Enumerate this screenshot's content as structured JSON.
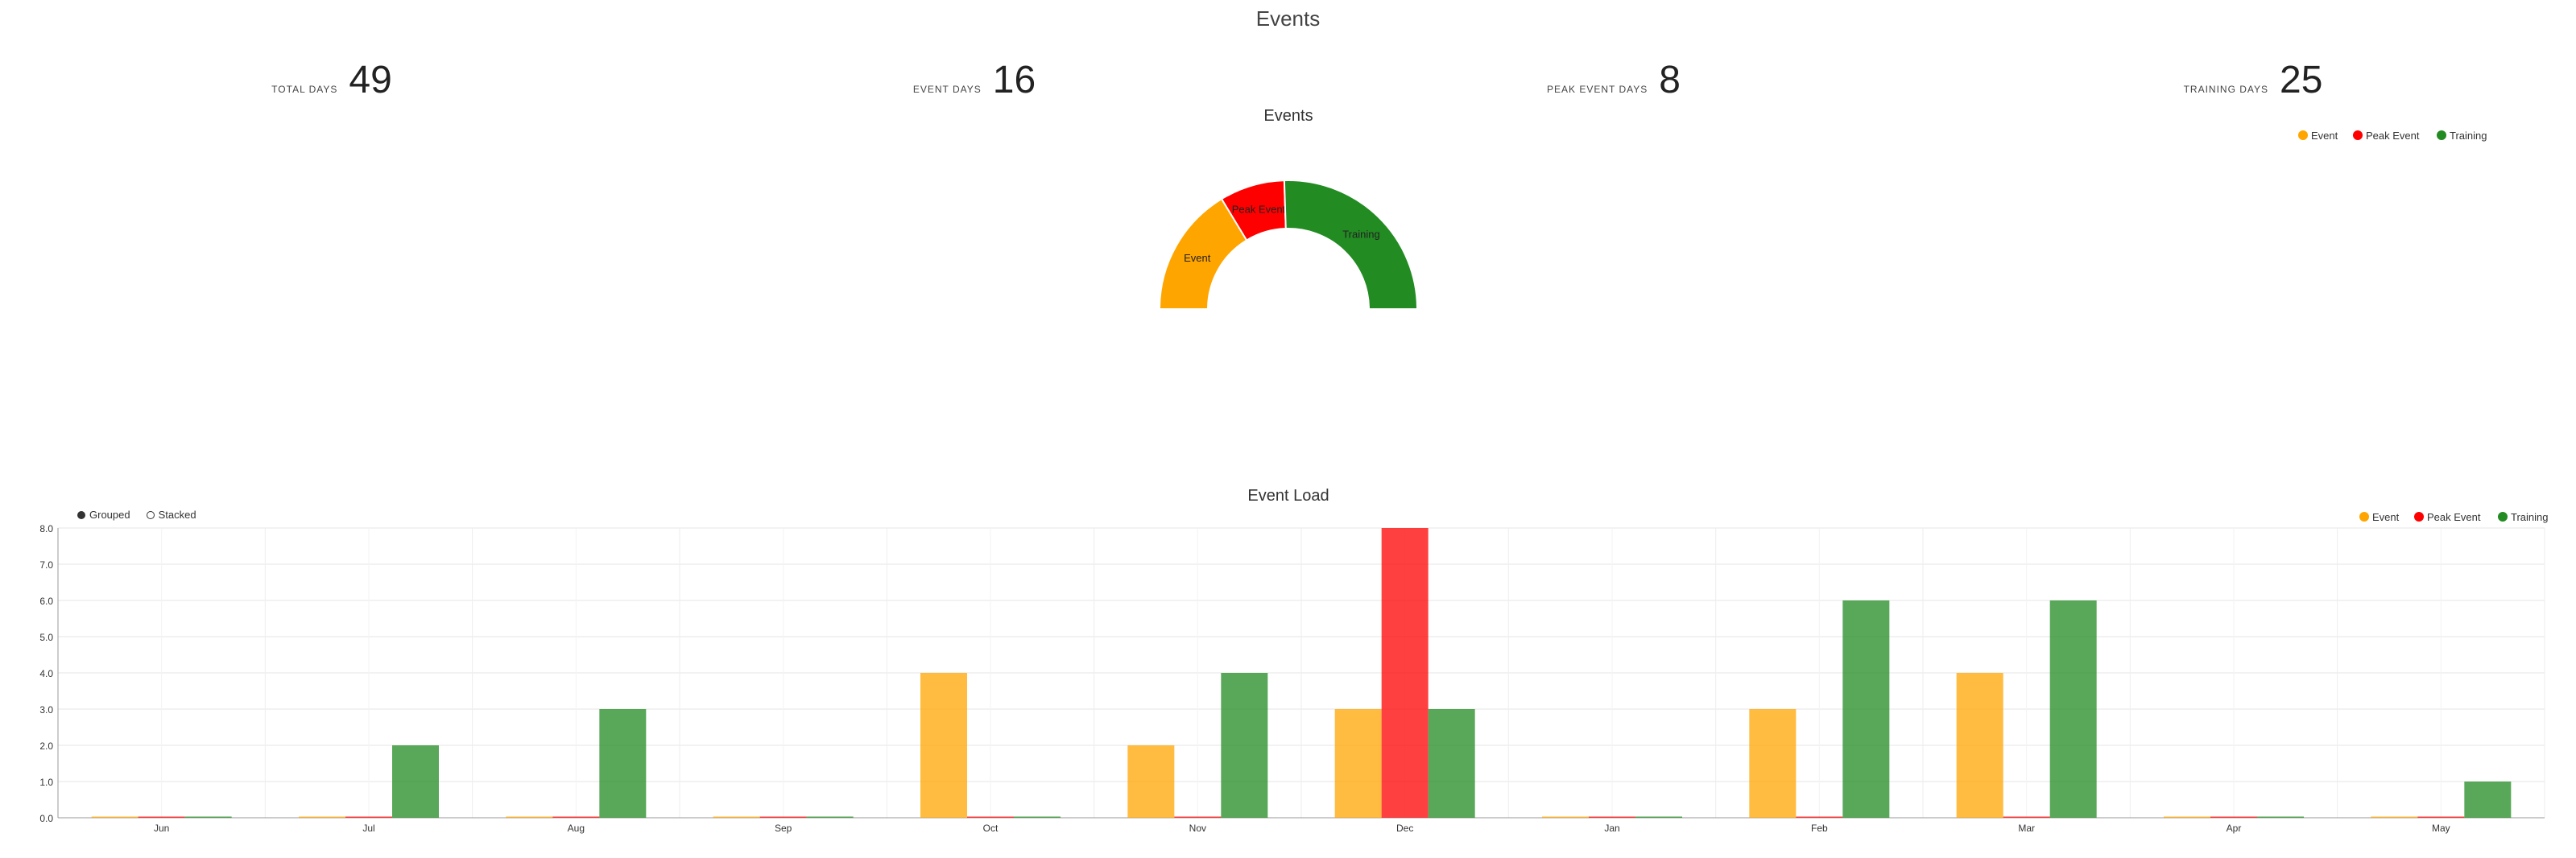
{
  "page": {
    "title": "Events"
  },
  "stats": [
    {
      "label": "TOTAL DAYS",
      "value": "49"
    },
    {
      "label": "EVENT DAYS",
      "value": "16"
    },
    {
      "label": "PEAK EVENT DAYS",
      "value": "8"
    },
    {
      "label": "TRAINING DAYS",
      "value": "25"
    }
  ],
  "colors": {
    "event": "#ffa500",
    "peak_event": "#ff0000",
    "training": "#228b22"
  },
  "bar_controls": {
    "grouped_label": "Grouped",
    "stacked_label": "Stacked",
    "selected": "grouped"
  },
  "chart_data": [
    {
      "type": "pie",
      "variant": "half-donut",
      "title": "Events",
      "legend_position": "top-right",
      "labels": [
        "Event",
        "Peak Event",
        "Training"
      ],
      "values": [
        16,
        8,
        25
      ],
      "colors": [
        "#ffa500",
        "#ff0000",
        "#228b22"
      ]
    },
    {
      "type": "bar",
      "mode": "grouped",
      "title": "Event Load",
      "legend_position": "top-right",
      "categories": [
        "Jun",
        "Jul",
        "Aug",
        "Sep",
        "Oct",
        "Nov",
        "Dec",
        "Jan",
        "Feb",
        "Mar",
        "Apr",
        "May"
      ],
      "ylim": [
        0,
        8
      ],
      "yticks": [
        "0.0",
        "1.0",
        "2.0",
        "3.0",
        "4.0",
        "5.0",
        "6.0",
        "7.0",
        "8.0"
      ],
      "grid": true,
      "series": [
        {
          "name": "Event",
          "color": "#ffa500",
          "values": [
            0,
            0,
            0,
            0,
            4,
            2,
            3,
            0,
            3,
            4,
            0,
            0
          ]
        },
        {
          "name": "Peak Event",
          "color": "#ff0000",
          "values": [
            0,
            0,
            0,
            0,
            0,
            0,
            8,
            0,
            0,
            0,
            0,
            0
          ]
        },
        {
          "name": "Training",
          "color": "#228b22",
          "values": [
            0,
            2,
            3,
            0,
            0,
            4,
            3,
            0,
            6,
            6,
            0,
            1
          ]
        }
      ]
    }
  ]
}
